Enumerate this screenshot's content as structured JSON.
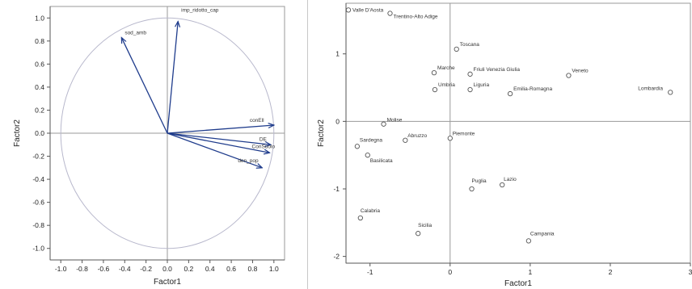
{
  "chart_data": [
    {
      "type": "scatter",
      "title": "",
      "xlabel": "Factor1",
      "ylabel": "Factor2",
      "xlim": [
        -1.1,
        1.1
      ],
      "ylim": [
        -1.1,
        1.1
      ],
      "xticks": [
        "-1.0",
        "-0.8",
        "-0.6",
        "-0.4",
        "-0.2",
        "0.0",
        "0.2",
        "0.4",
        "0.6",
        "0.8",
        "1.0"
      ],
      "yticks": [
        "1.0",
        "0.8",
        "0.6",
        "0.4",
        "0.2",
        "0.0",
        "-0.2",
        "-0.4",
        "-0.6",
        "-0.8",
        "-1.0"
      ],
      "unit_circle": true,
      "vector_color": "#1f3c8c",
      "vectors": [
        {
          "name": "imp_ridotto_cap",
          "x": 0.1,
          "y": 0.97
        },
        {
          "name": "sod_amb",
          "x": -0.43,
          "y": 0.83
        },
        {
          "name": "conEll",
          "x": 1.0,
          "y": 0.07
        },
        {
          "name": "DE",
          "x": 0.97,
          "y": -0.1
        },
        {
          "name": "ConSuolo",
          "x": 0.96,
          "y": -0.17
        },
        {
          "name": "den_pop",
          "x": 0.89,
          "y": -0.3
        }
      ]
    },
    {
      "type": "scatter",
      "title": "",
      "xlabel": "Factor1",
      "ylabel": "Factor2",
      "xlim": [
        -1.3,
        3.0
      ],
      "ylim": [
        -2.1,
        1.75
      ],
      "xticks": [
        "-1",
        "0",
        "1",
        "2",
        "3"
      ],
      "yticks": [
        "1",
        "0",
        "-1",
        "-2"
      ],
      "points": [
        {
          "name": "Valle D'Aosta",
          "x": -1.27,
          "y": 1.65
        },
        {
          "name": "Trentino-Alto Adige",
          "x": -0.75,
          "y": 1.6
        },
        {
          "name": "Toscana",
          "x": 0.08,
          "y": 1.07
        },
        {
          "name": "Marche",
          "x": -0.2,
          "y": 0.72
        },
        {
          "name": "Friuli Venezia Giulia",
          "x": 0.25,
          "y": 0.7
        },
        {
          "name": "Veneto",
          "x": 1.48,
          "y": 0.68
        },
        {
          "name": "Umbria",
          "x": -0.19,
          "y": 0.47
        },
        {
          "name": "Liguria",
          "x": 0.25,
          "y": 0.47
        },
        {
          "name": "Emilia-Romagna",
          "x": 0.75,
          "y": 0.41
        },
        {
          "name": "Lombardia",
          "x": 2.75,
          "y": 0.43
        },
        {
          "name": "Molise",
          "x": -0.83,
          "y": -0.04
        },
        {
          "name": "Piemonte",
          "x": 0.0,
          "y": -0.25
        },
        {
          "name": "Abruzzo",
          "x": -0.56,
          "y": -0.28
        },
        {
          "name": "Sardegna",
          "x": -1.16,
          "y": -0.37
        },
        {
          "name": "Basilicata",
          "x": -1.03,
          "y": -0.5
        },
        {
          "name": "Lazio",
          "x": 0.65,
          "y": -0.94
        },
        {
          "name": "Puglia",
          "x": 0.27,
          "y": -1.0
        },
        {
          "name": "Calabria",
          "x": -1.12,
          "y": -1.43
        },
        {
          "name": "Sicilia",
          "x": -0.4,
          "y": -1.66
        },
        {
          "name": "Campania",
          "x": 0.98,
          "y": -1.77
        }
      ]
    }
  ]
}
